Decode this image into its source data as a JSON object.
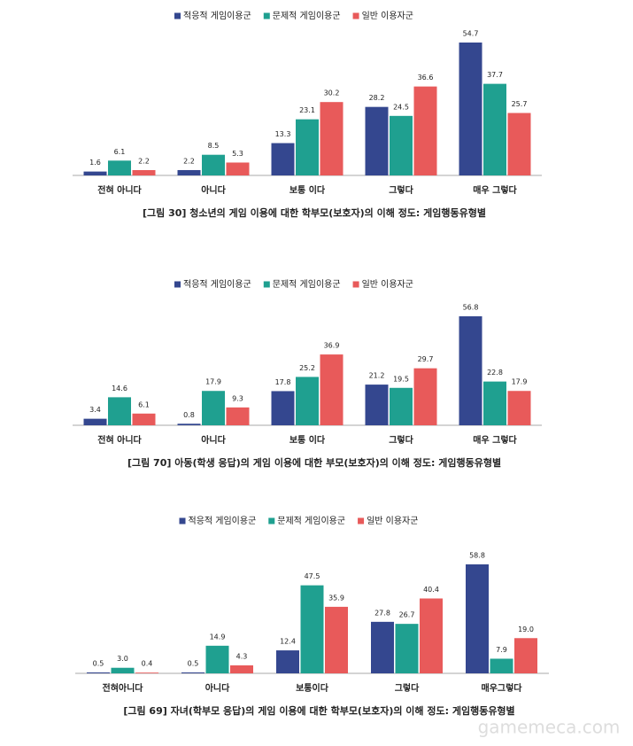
{
  "chart_data": [
    {
      "type": "bar",
      "title": "[그림 30] 청소년의 게임 이용에 대한 학부모(보호자)의 이해 정도: 게임행동유형별",
      "categories": [
        "전혀 아니다",
        "아니다",
        "보통 이다",
        "그렇다",
        "매우 그렇다"
      ],
      "series": [
        {
          "name": "적응적 게임이용군",
          "color": "#34478f",
          "values": [
            1.6,
            2.2,
            13.3,
            28.2,
            54.7
          ]
        },
        {
          "name": "문제적 게임이용군",
          "color": "#1fa090",
          "values": [
            6.1,
            8.5,
            23.1,
            24.5,
            37.7
          ]
        },
        {
          "name": "일반 이용자군",
          "color": "#e85a5a",
          "values": [
            2.2,
            5.3,
            30.2,
            36.6,
            25.7
          ]
        }
      ]
    },
    {
      "type": "bar",
      "title": "[그림 70] 아동(학생 응답)의 게임 이용에 대한 부모(보호자)의 이해 정도: 게임행동유형별",
      "categories": [
        "전혀 아니다",
        "아니다",
        "보통 이다",
        "그렇다",
        "매우 그렇다"
      ],
      "series": [
        {
          "name": "적응적 게임이용군",
          "color": "#34478f",
          "values": [
            3.4,
            0.8,
            17.8,
            21.2,
            56.8
          ]
        },
        {
          "name": "문제적 게임이용군",
          "color": "#1fa090",
          "values": [
            14.6,
            17.9,
            25.2,
            19.5,
            22.8
          ]
        },
        {
          "name": "일반 이용자군",
          "color": "#e85a5a",
          "values": [
            6.1,
            9.3,
            36.9,
            29.7,
            17.9
          ]
        }
      ]
    },
    {
      "type": "bar",
      "title": "[그림 69] 자녀(학부모 응답)의 게임 이용에 대한 학부모(보호자)의 이해 정도: 게임행동유형별",
      "categories": [
        "전혀아니다",
        "아니다",
        "보통이다",
        "그렇다",
        "매우그렇다"
      ],
      "series": [
        {
          "name": "적응적 게임이용군",
          "color": "#34478f",
          "values": [
            0.5,
            0.5,
            12.4,
            27.8,
            58.8
          ]
        },
        {
          "name": "문제적 게임이용군",
          "color": "#1fa090",
          "values": [
            3,
            14.9,
            47.5,
            26.7,
            7.9
          ],
          "value_labels": [
            "3.0",
            "14.9",
            "47.5",
            "26.7",
            "7.9"
          ]
        },
        {
          "name": "일반 이용자군",
          "color": "#e85a5a",
          "values": [
            0.4,
            4.3,
            35.9,
            40.4,
            19
          ],
          "value_labels": [
            "0.4",
            "4.3",
            "35.9",
            "40.4",
            "19.0"
          ]
        }
      ]
    }
  ],
  "watermark": "gamemeca.com"
}
